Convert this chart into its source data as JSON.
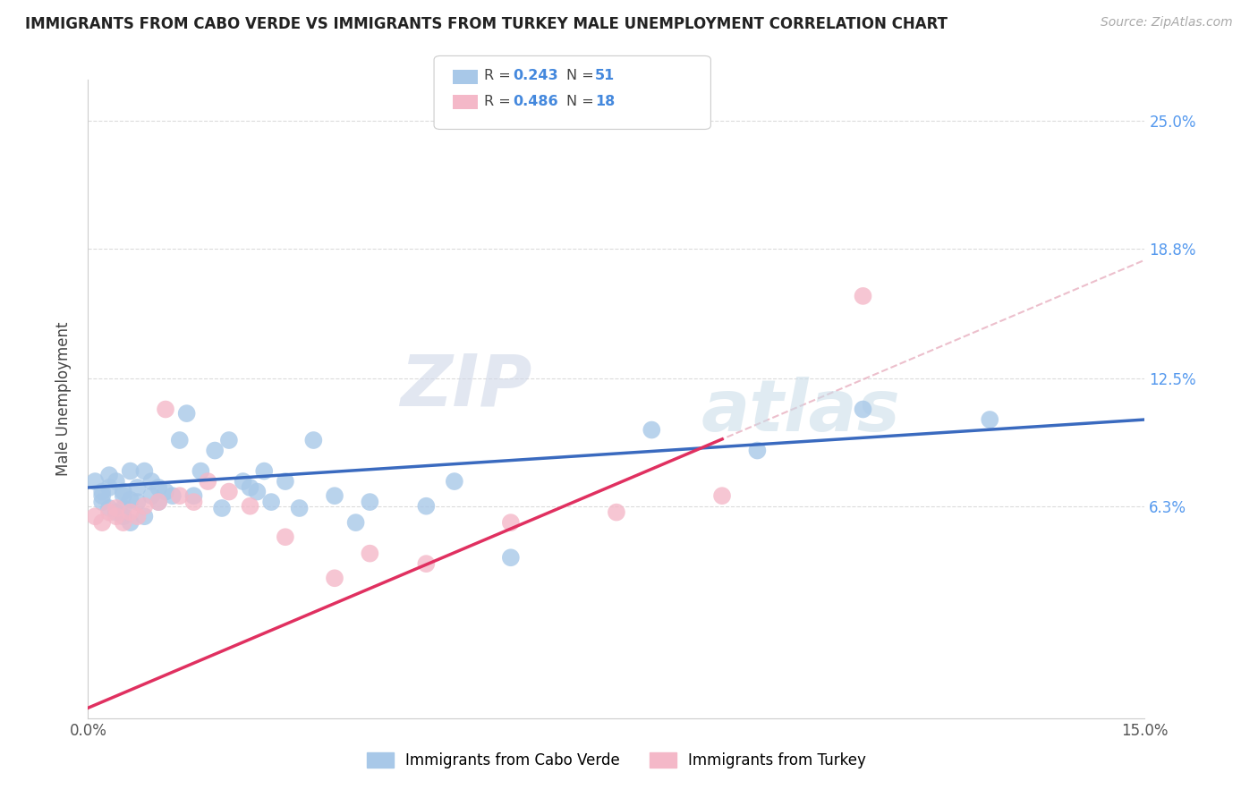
{
  "title": "IMMIGRANTS FROM CABO VERDE VS IMMIGRANTS FROM TURKEY MALE UNEMPLOYMENT CORRELATION CHART",
  "source": "Source: ZipAtlas.com",
  "ylabel": "Male Unemployment",
  "xlim": [
    0.0,
    0.15
  ],
  "ylim": [
    -0.04,
    0.27
  ],
  "yticks": [
    0.063,
    0.125,
    0.188,
    0.25
  ],
  "ytick_labels": [
    "6.3%",
    "12.5%",
    "18.8%",
    "25.0%"
  ],
  "grid_color": "#cccccc",
  "background_color": "#ffffff",
  "watermark_zip": "ZIP",
  "watermark_atlas": "atlas",
  "series1_color": "#a8c8e8",
  "series2_color": "#f4b8c8",
  "trendline1_color": "#3a6abf",
  "trendline2_color": "#e03060",
  "ref_line_color": "#e8b0c0",
  "cabo_verde_x": [
    0.001,
    0.002,
    0.002,
    0.002,
    0.003,
    0.003,
    0.003,
    0.004,
    0.004,
    0.005,
    0.005,
    0.005,
    0.005,
    0.006,
    0.006,
    0.006,
    0.007,
    0.007,
    0.008,
    0.008,
    0.009,
    0.009,
    0.01,
    0.01,
    0.011,
    0.012,
    0.013,
    0.014,
    0.015,
    0.016,
    0.018,
    0.019,
    0.02,
    0.022,
    0.023,
    0.024,
    0.025,
    0.026,
    0.028,
    0.03,
    0.032,
    0.035,
    0.038,
    0.04,
    0.048,
    0.052,
    0.06,
    0.08,
    0.095,
    0.11,
    0.128
  ],
  "cabo_verde_y": [
    0.075,
    0.068,
    0.07,
    0.065,
    0.072,
    0.062,
    0.078,
    0.06,
    0.075,
    0.058,
    0.062,
    0.068,
    0.07,
    0.08,
    0.066,
    0.055,
    0.072,
    0.065,
    0.08,
    0.058,
    0.068,
    0.075,
    0.065,
    0.072,
    0.07,
    0.068,
    0.095,
    0.108,
    0.068,
    0.08,
    0.09,
    0.062,
    0.095,
    0.075,
    0.072,
    0.07,
    0.08,
    0.065,
    0.075,
    0.062,
    0.095,
    0.068,
    0.055,
    0.065,
    0.063,
    0.075,
    0.038,
    0.1,
    0.09,
    0.11,
    0.105
  ],
  "turkey_x": [
    0.001,
    0.002,
    0.003,
    0.004,
    0.004,
    0.005,
    0.006,
    0.007,
    0.008,
    0.01,
    0.011,
    0.013,
    0.015,
    0.017,
    0.02,
    0.023,
    0.028,
    0.035,
    0.04,
    0.048,
    0.06,
    0.075,
    0.09,
    0.11
  ],
  "turkey_y": [
    0.058,
    0.055,
    0.06,
    0.058,
    0.062,
    0.055,
    0.06,
    0.058,
    0.063,
    0.065,
    0.11,
    0.068,
    0.065,
    0.075,
    0.07,
    0.063,
    0.048,
    0.028,
    0.04,
    0.035,
    0.055,
    0.06,
    0.068,
    0.165
  ]
}
